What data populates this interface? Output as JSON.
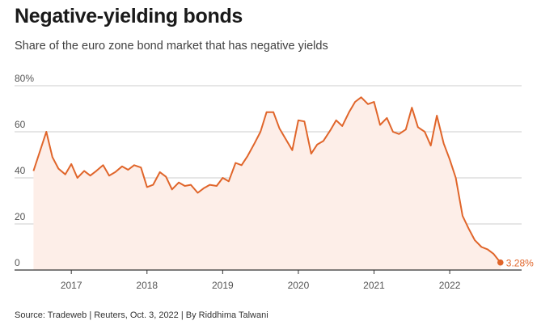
{
  "title": "Negative-yielding bonds",
  "subtitle": "Share of the euro zone bond market that has negative yields",
  "source": "Source: Tradeweb | Reuters, Oct. 3, 2022 | By Riddhima Talwani",
  "colors": {
    "line": "#e0652a",
    "area": "#fdeee8",
    "grid": "#cccccc",
    "axis": "#333333"
  },
  "chart_data": {
    "type": "area",
    "title": "Negative-yielding bonds",
    "subtitle": "Share of the euro zone bond market that has negative yields",
    "xlabel": "",
    "ylabel": "",
    "ylim": [
      0,
      80
    ],
    "xlim": [
      2016.25,
      2022.95
    ],
    "y_ticks": [
      0,
      20,
      40,
      60,
      80
    ],
    "y_tick_labels": [
      "0",
      "20",
      "40",
      "60",
      "80%"
    ],
    "x_ticks": [
      2017,
      2018,
      2019,
      2020,
      2021,
      2022
    ],
    "x_tick_labels": [
      "2017",
      "2018",
      "2019",
      "2020",
      "2021",
      "2022"
    ],
    "grid": true,
    "end_label": "3.28%",
    "series": [
      {
        "x": [
          2016.5,
          2016.67,
          2016.75,
          2016.83,
          2016.92,
          2017.0,
          2017.08,
          2017.17,
          2017.25,
          2017.33,
          2017.42,
          2017.5,
          2017.58,
          2017.67,
          2017.75,
          2017.83,
          2017.92,
          2018.0,
          2018.08,
          2018.17,
          2018.25,
          2018.33,
          2018.42,
          2018.5,
          2018.58,
          2018.67,
          2018.75,
          2018.83,
          2018.92,
          2019.0,
          2019.08,
          2019.17,
          2019.25,
          2019.33,
          2019.42,
          2019.5,
          2019.58,
          2019.67,
          2019.75,
          2019.83,
          2019.92,
          2020.0,
          2020.08,
          2020.17,
          2020.25,
          2020.33,
          2020.42,
          2020.5,
          2020.58,
          2020.67,
          2020.75,
          2020.83,
          2020.92,
          2021.0,
          2021.08,
          2021.17,
          2021.25,
          2021.33,
          2021.42,
          2021.5,
          2021.58,
          2021.67,
          2021.75,
          2021.83,
          2021.92,
          2022.0,
          2022.08,
          2022.17,
          2022.25,
          2022.33,
          2022.42,
          2022.5,
          2022.58,
          2022.67
        ],
        "values": [
          43,
          60,
          49,
          44,
          41.5,
          46,
          40,
          43,
          41,
          43,
          45.5,
          41,
          42.5,
          45,
          43.5,
          45.5,
          44.5,
          36,
          37,
          42.5,
          40.5,
          35,
          38,
          36.5,
          37,
          33.5,
          35.5,
          37,
          36.5,
          40,
          38.5,
          46.5,
          45.5,
          49.5,
          55,
          60,
          68.5,
          68.5,
          61.5,
          57,
          52,
          65,
          64.5,
          50.5,
          54.5,
          56,
          60.5,
          65,
          62.5,
          68.5,
          73,
          75,
          72,
          73,
          63,
          66,
          60,
          59,
          61,
          70.5,
          62,
          60,
          54,
          67,
          55,
          48,
          40,
          23.5,
          18,
          13,
          10,
          9,
          7,
          3.28
        ]
      }
    ]
  }
}
